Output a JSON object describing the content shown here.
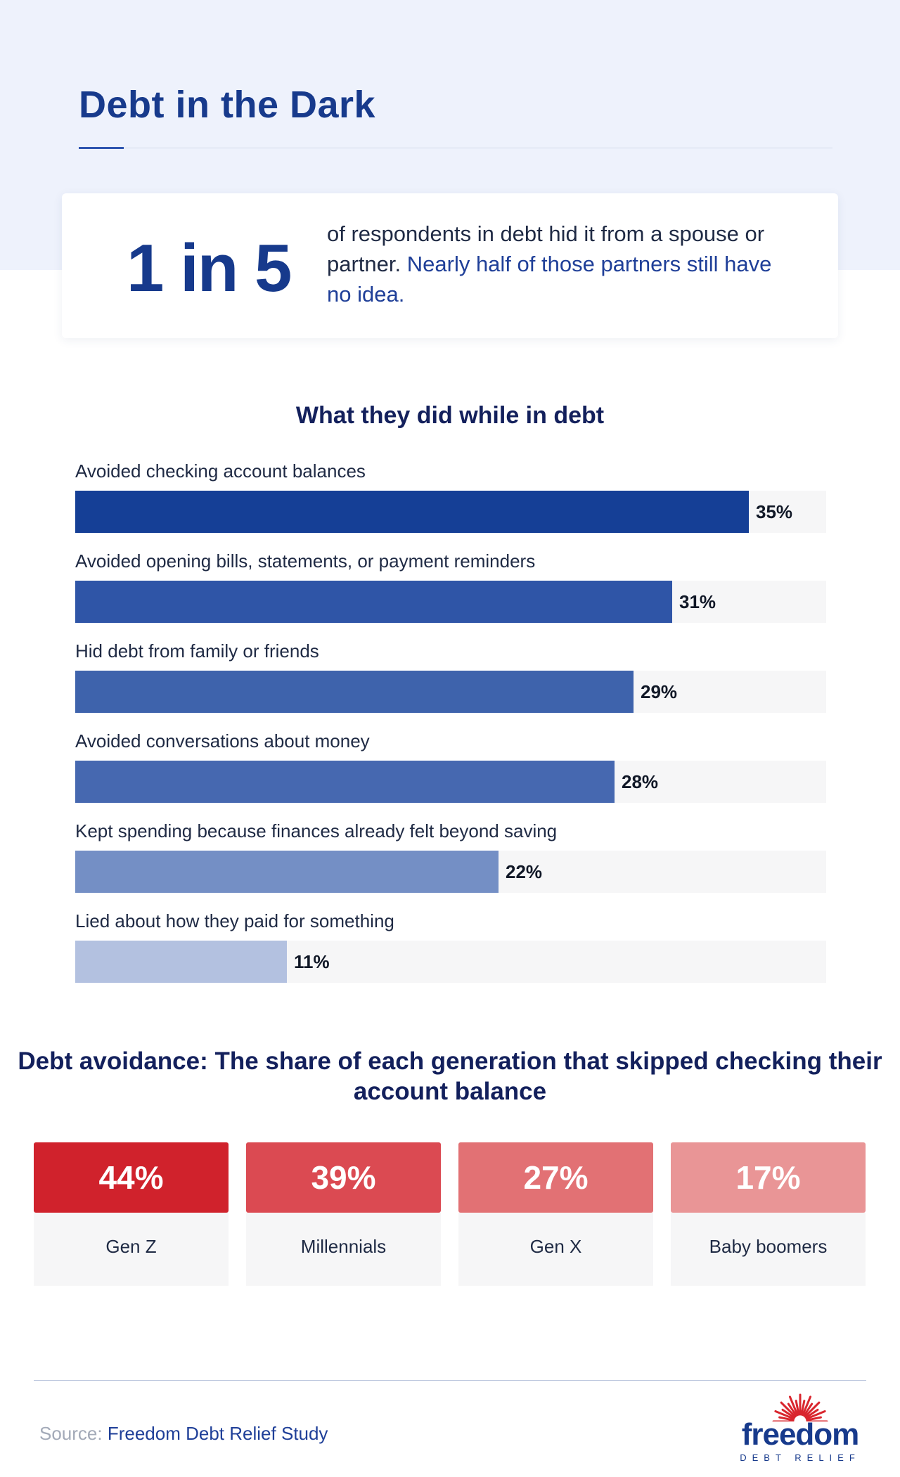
{
  "header": {
    "title": "Debt in the Dark"
  },
  "stat": {
    "big": "1 in 5",
    "text": "of respondents in debt hid it from a spouse or partner.",
    "highlight": "Nearly half of those partners still have no idea."
  },
  "chart_data": [
    {
      "type": "bar",
      "orientation": "horizontal",
      "title": "What they did while in debt",
      "categories": [
        "Avoided checking account balances",
        "Avoided opening bills, statements, or payment reminders",
        "Hid debt from family or friends",
        "Avoided conversations about money",
        "Kept spending because finances already felt beyond saving",
        "Lied about how they paid for something"
      ],
      "values": [
        35,
        31,
        29,
        28,
        22,
        11
      ],
      "value_labels": [
        "35%",
        "31%",
        "29%",
        "28%",
        "22%",
        "11%"
      ],
      "colors": [
        "#153f96",
        "#2f55a7",
        "#3e63ac",
        "#4668b0",
        "#748fc5",
        "#b3c1e0"
      ],
      "xlim": [
        0,
        39
      ]
    },
    {
      "type": "bar",
      "title": "Debt avoidance: The share of each generation that skipped checking their account balance",
      "categories": [
        "Gen Z",
        "Millennials",
        "Gen X",
        "Baby boomers"
      ],
      "values": [
        44,
        39,
        27,
        17
      ],
      "value_labels": [
        "44%",
        "39%",
        "27%",
        "17%"
      ],
      "colors": [
        "#d0222c",
        "#db4a52",
        "#e27174",
        "#e99596"
      ]
    }
  ],
  "footer": {
    "source_label": "Source:",
    "source_value": "Freedom Debt Relief Study",
    "logo_word": "freedom",
    "logo_sub": "DEBT RELIEF",
    "logo_icon": "sunburst-icon"
  }
}
